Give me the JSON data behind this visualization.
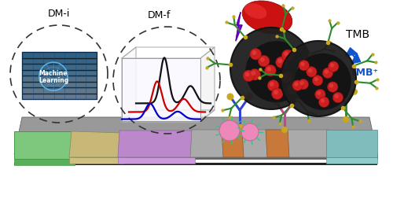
{
  "bg_color": "#ffffff",
  "label_dmi": "DM-i",
  "label_dmf": "DM-f",
  "label_tmb": "TMB",
  "label_tmb_plus": "TMB⁺",
  "ml_text_line1": "Machine",
  "ml_text_line2": "Learning",
  "lightning_color": "#7700cc",
  "red_blob_color": "#cc1111",
  "arrow_color": "#1155cc",
  "nanoparticle_dark": "#222222",
  "antibody_color_green": "#2d8a2d",
  "antibody_color_blue": "#3344cc",
  "antibody_color_pink": "#cc4488",
  "bead_color_red": "#cc2222",
  "bead_color_gold": "#c8a000",
  "strip_base_color": "#888888",
  "pad_green": "#7ec87e",
  "pad_tan": "#c8b070",
  "pad_purple": "#c090c0",
  "pad_orange": "#c87830",
  "pad_teal": "#80c0c0",
  "line_black": "#111111",
  "line_red": "#cc0000",
  "line_blue": "#0000cc"
}
